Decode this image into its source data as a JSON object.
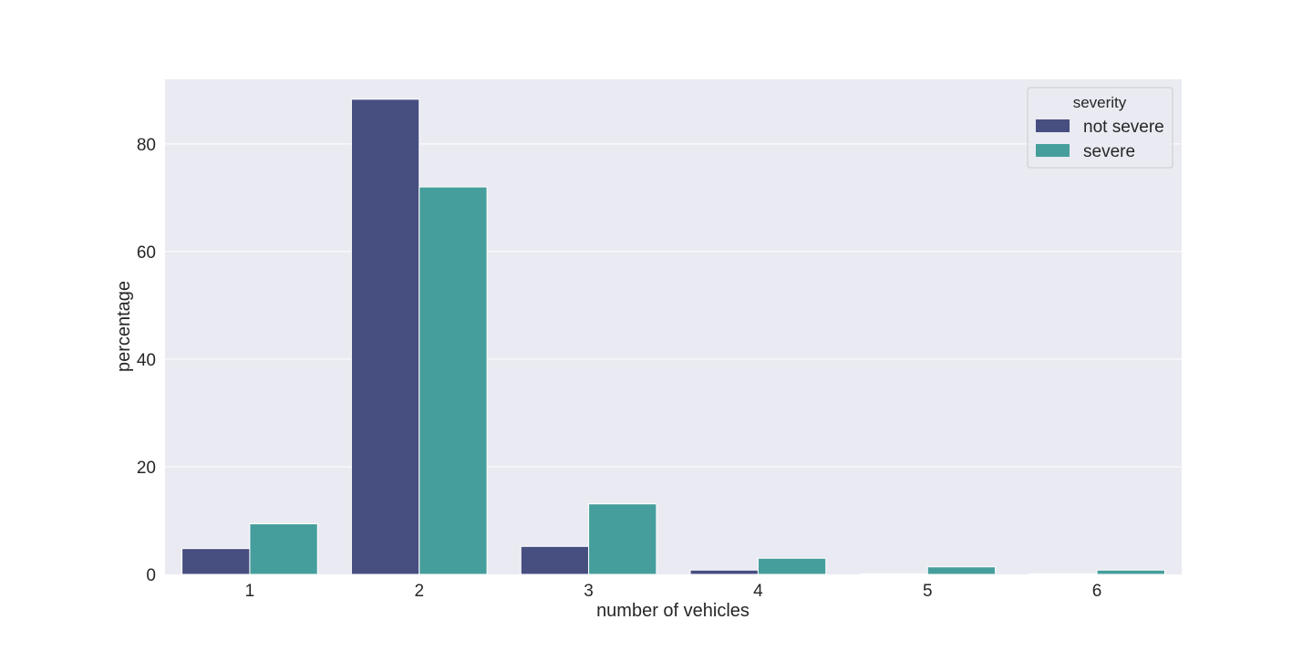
{
  "chart_data": {
    "type": "bar",
    "title": "",
    "xlabel": "number of vehicles",
    "ylabel": "percentage",
    "categories": [
      "1",
      "2",
      "3",
      "4",
      "5",
      "6"
    ],
    "ylim": [
      0,
      92
    ],
    "yticks": [
      0,
      20,
      40,
      60,
      80
    ],
    "grid": true,
    "legend": {
      "title": "severity",
      "placement": "top-right"
    },
    "series": [
      {
        "name": "not severe",
        "color": "#474f81",
        "values": [
          4.8,
          88.3,
          5.2,
          0.8,
          0.1,
          0.1
        ]
      },
      {
        "name": "severe",
        "color": "#469e9c",
        "values": [
          9.4,
          72.0,
          13.1,
          3.0,
          1.4,
          0.8
        ]
      }
    ],
    "background_color": "#eaeaf2"
  }
}
